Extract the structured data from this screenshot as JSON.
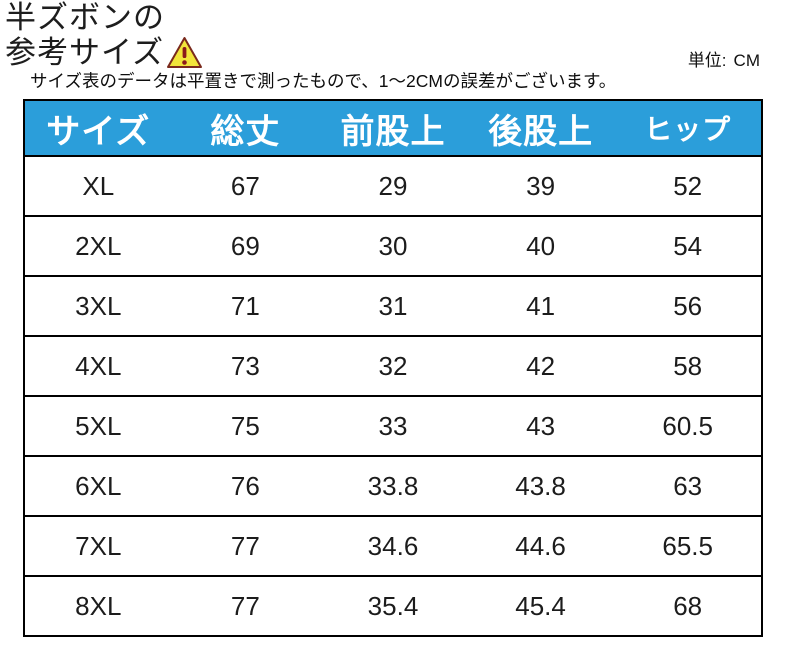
{
  "title": {
    "line1": "半ズボンの",
    "line2": "参考サイズ"
  },
  "unit": {
    "label": "単位:",
    "value": "CM"
  },
  "note": "サイズ表のデータは平置きで測ったもので、1～2CMの誤差がございます。",
  "icons": {
    "warning": "warning-triangle-icon"
  },
  "colors": {
    "header_bg": "#2B9EDA",
    "header_text": "#FFFFFF",
    "border": "#000000",
    "warning_fill": "#F2E53B",
    "warning_stroke": "#7A2A1D",
    "warning_mark": "#8B1A1A"
  },
  "chart_data": {
    "type": "table",
    "title": "半ズボンの参考サイズ",
    "unit": "CM",
    "headers": [
      "サイズ",
      "総丈",
      "前股上",
      "後股上",
      "ヒップ"
    ],
    "rows": [
      [
        "XL",
        "67",
        "29",
        "39",
        "52"
      ],
      [
        "2XL",
        "69",
        "30",
        "40",
        "54"
      ],
      [
        "3XL",
        "71",
        "31",
        "41",
        "56"
      ],
      [
        "4XL",
        "73",
        "32",
        "42",
        "58"
      ],
      [
        "5XL",
        "75",
        "33",
        "43",
        "60.5"
      ],
      [
        "6XL",
        "76",
        "33.8",
        "43.8",
        "63"
      ],
      [
        "7XL",
        "77",
        "34.6",
        "44.6",
        "65.5"
      ],
      [
        "8XL",
        "77",
        "35.4",
        "45.4",
        "68"
      ]
    ]
  }
}
